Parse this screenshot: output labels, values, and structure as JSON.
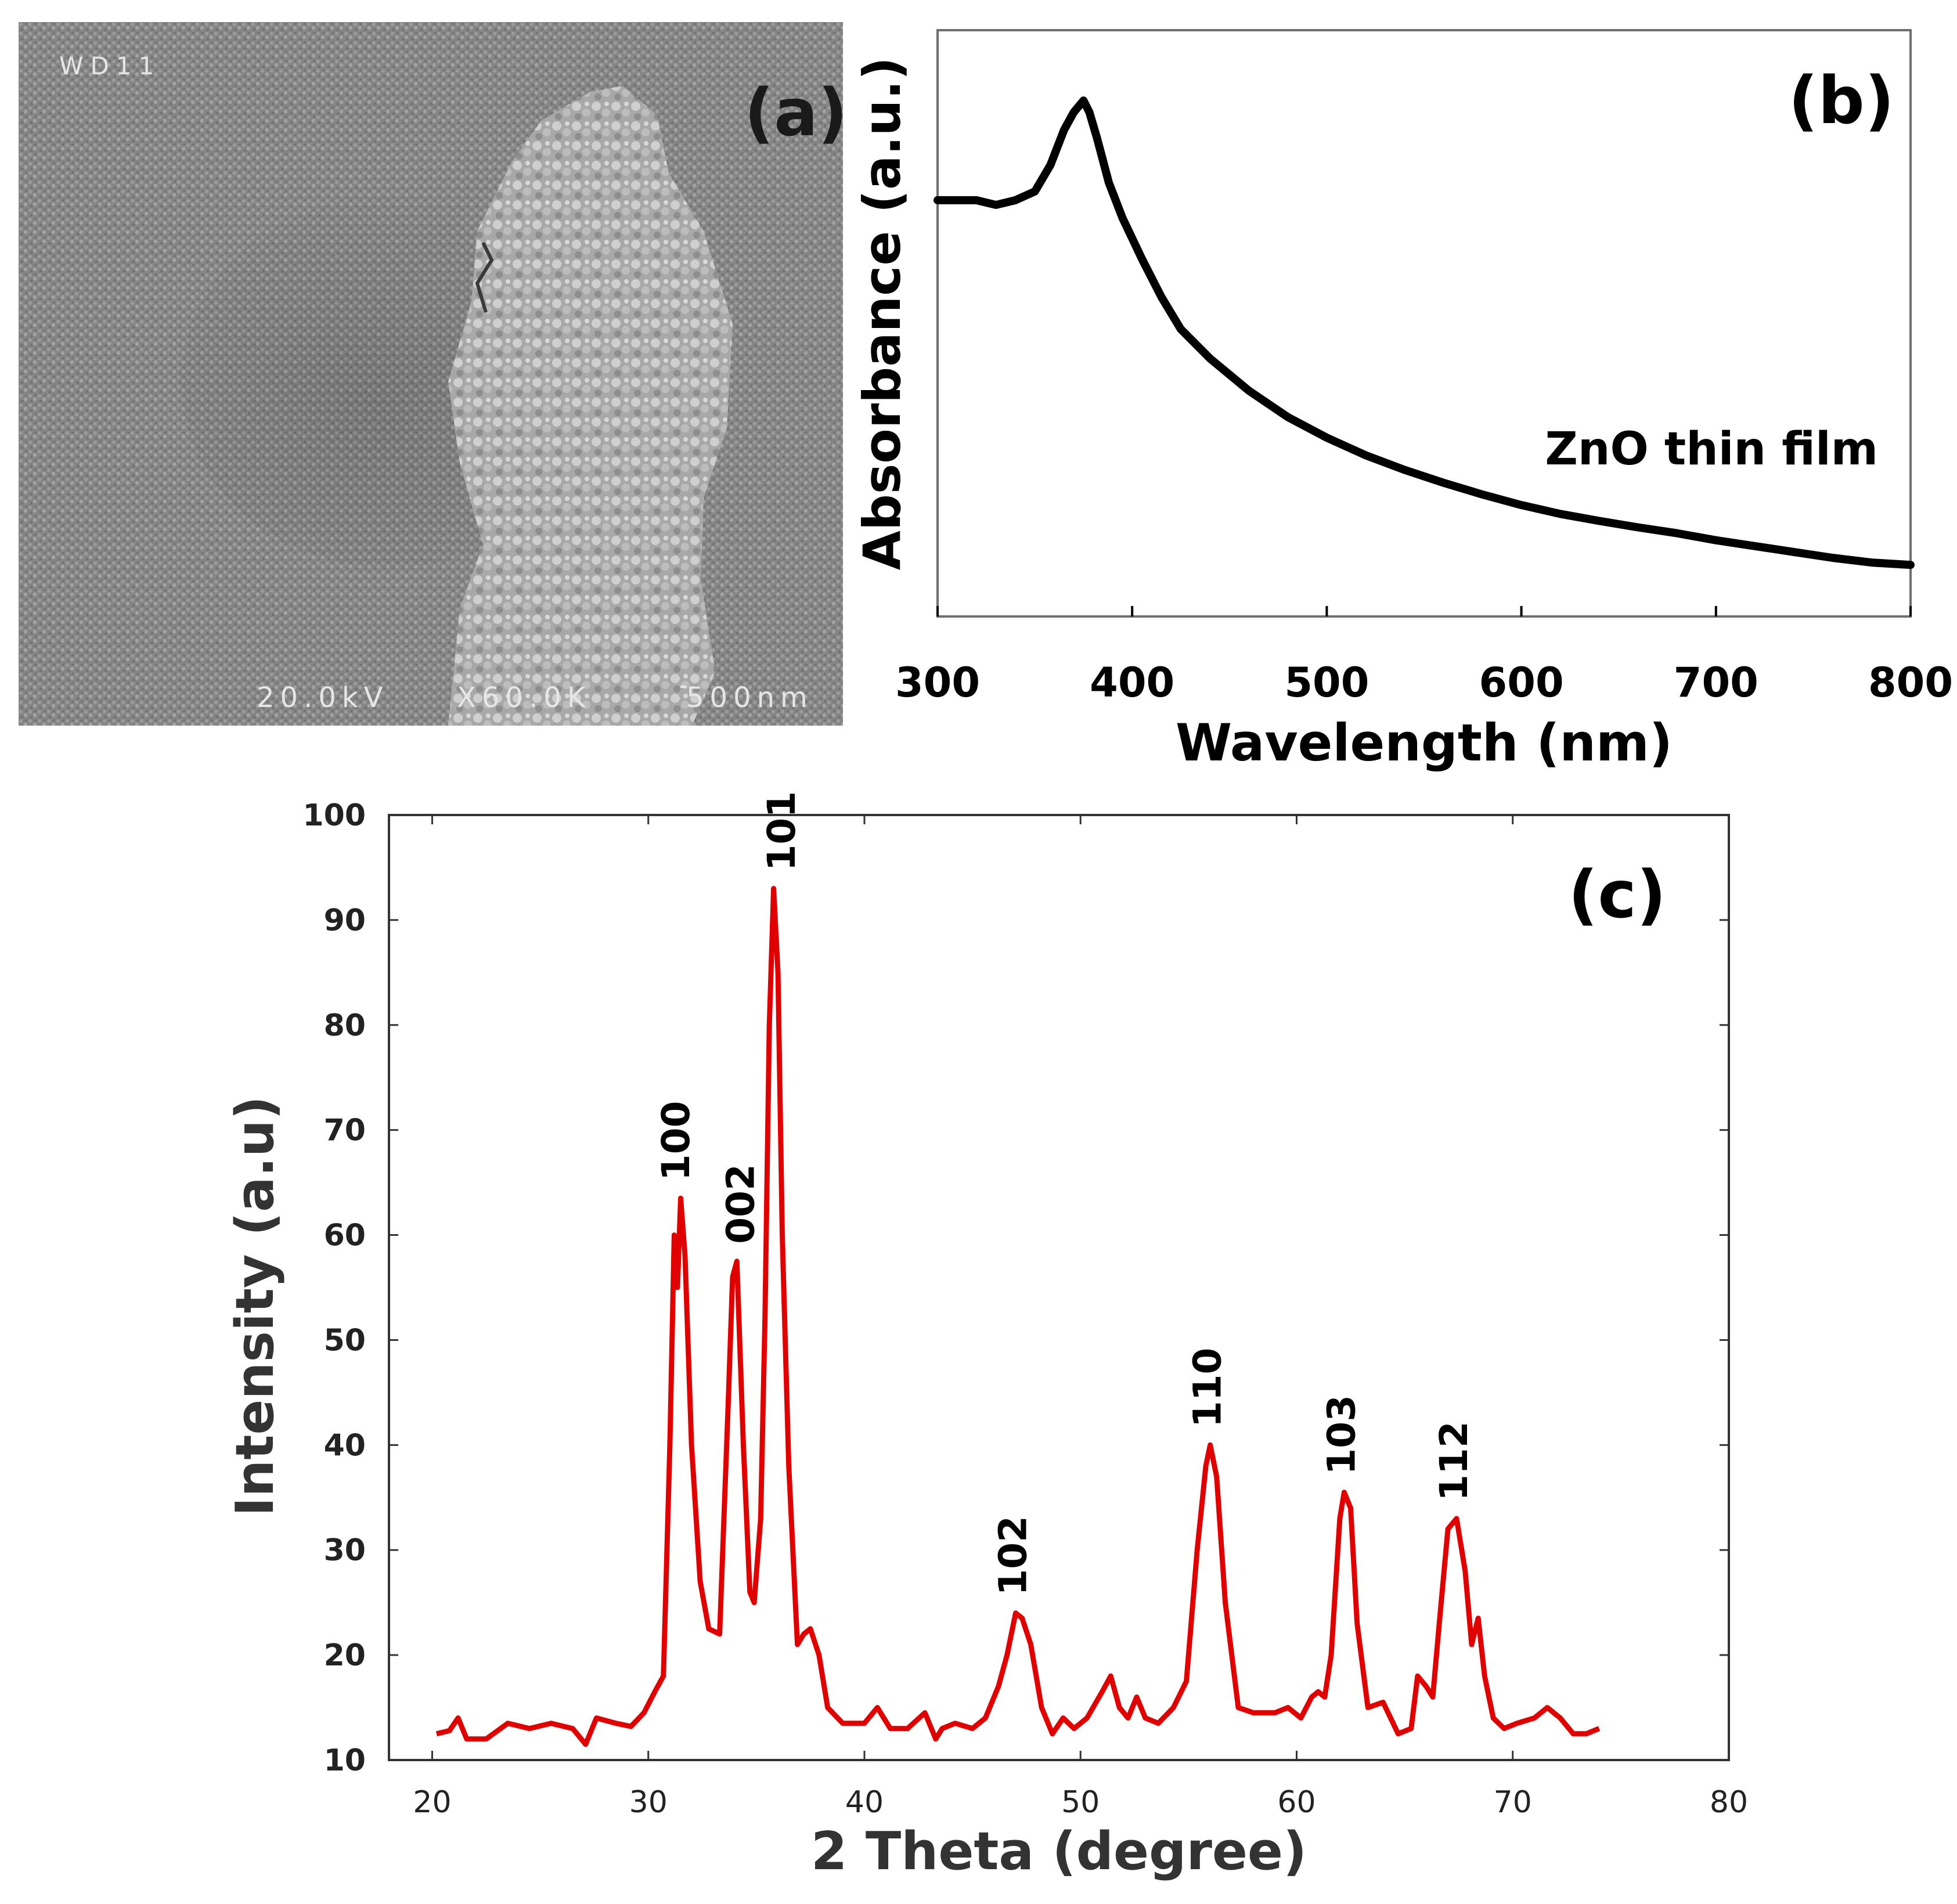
{
  "panels": {
    "a": {
      "label": "(a)",
      "sem_overlay": {
        "corner_label": "WD11",
        "voltage": "20.0kV",
        "magnification": "X60.0K",
        "scale": "500nm"
      }
    }
  },
  "colors": {
    "absorbance_line": "#000000",
    "xrd_line": "#e00000",
    "axis": "#000000",
    "sem_bg": "#8a8a8a"
  },
  "chart_data": [
    {
      "id": "absorbance",
      "type": "line",
      "label": "(b)",
      "title": "",
      "xlabel": "Wavelength (nm)",
      "ylabel": "Absorbance (a.u.)",
      "annotation": "ZnO thin film",
      "xlim": [
        300,
        800
      ],
      "ylim": [
        0,
        1
      ],
      "xticks": [
        300,
        400,
        500,
        600,
        700,
        800
      ],
      "series": [
        {
          "name": "ZnO thin film",
          "x": [
            300,
            320,
            330,
            340,
            350,
            358,
            365,
            370,
            375,
            378,
            382,
            388,
            395,
            405,
            415,
            425,
            440,
            460,
            480,
            500,
            520,
            540,
            560,
            580,
            600,
            620,
            640,
            660,
            680,
            700,
            720,
            740,
            760,
            780,
            800
          ],
          "y": [
            0.71,
            0.71,
            0.702,
            0.71,
            0.725,
            0.77,
            0.83,
            0.86,
            0.88,
            0.86,
            0.815,
            0.74,
            0.68,
            0.61,
            0.545,
            0.49,
            0.44,
            0.385,
            0.34,
            0.305,
            0.275,
            0.25,
            0.228,
            0.208,
            0.19,
            0.175,
            0.163,
            0.152,
            0.142,
            0.13,
            0.12,
            0.11,
            0.1,
            0.092,
            0.088
          ]
        }
      ]
    },
    {
      "id": "xrd",
      "type": "line",
      "label": "(c)",
      "title": "",
      "xlabel": "2 Theta (degree)",
      "ylabel": "Intensity (a.u)",
      "xlim": [
        18,
        80
      ],
      "ylim": [
        10,
        100
      ],
      "xticks": [
        20,
        30,
        40,
        50,
        60,
        70,
        80
      ],
      "yticks": [
        10,
        20,
        30,
        40,
        50,
        60,
        70,
        80,
        90,
        100
      ],
      "peak_labels": [
        {
          "text": "100",
          "x": 31.4,
          "y": 63.5
        },
        {
          "text": "002",
          "x": 34.4,
          "y": 57.5
        },
        {
          "text": "101",
          "x": 36.3,
          "y": 93
        },
        {
          "text": "102",
          "x": 47.0,
          "y": 24
        },
        {
          "text": "110",
          "x": 56.0,
          "y": 40
        },
        {
          "text": "103",
          "x": 62.2,
          "y": 35.5
        },
        {
          "text": "112",
          "x": 67.4,
          "y": 33
        }
      ],
      "series": [
        {
          "name": "ZnO XRD",
          "x": [
            20.2,
            20.8,
            21.2,
            21.6,
            22.5,
            23.5,
            24.5,
            25.5,
            26.5,
            27.1,
            27.6,
            28.5,
            29.2,
            29.8,
            30.3,
            30.7,
            31.0,
            31.2,
            31.35,
            31.5,
            31.7,
            32.0,
            32.4,
            32.8,
            33.3,
            33.7,
            33.9,
            34.1,
            34.4,
            34.7,
            34.9,
            35.2,
            35.4,
            35.6,
            35.8,
            36.0,
            36.2,
            36.5,
            36.9,
            37.2,
            37.5,
            37.9,
            38.3,
            39.0,
            40.0,
            40.6,
            41.2,
            42.0,
            42.8,
            43.3,
            43.6,
            44.2,
            45.0,
            45.6,
            46.2,
            46.6,
            47.0,
            47.3,
            47.7,
            48.2,
            48.7,
            49.2,
            49.7,
            50.3,
            51.0,
            51.4,
            51.8,
            52.2,
            52.6,
            53.0,
            53.6,
            54.3,
            54.9,
            55.4,
            55.8,
            56.0,
            56.3,
            56.7,
            57.3,
            58.0,
            59.0,
            59.6,
            60.2,
            60.7,
            61.0,
            61.3,
            61.6,
            62.0,
            62.2,
            62.5,
            62.8,
            63.3,
            64.0,
            64.7,
            65.3,
            65.6,
            66.0,
            66.3,
            66.6,
            67.0,
            67.4,
            67.8,
            68.1,
            68.4,
            68.7,
            69.1,
            69.6,
            70.2,
            71.0,
            71.6,
            72.2,
            72.8,
            73.4,
            74.0
          ],
          "y": [
            12.5,
            12.8,
            14,
            12,
            12,
            13.5,
            13,
            13.5,
            13,
            11.5,
            14,
            13.5,
            13.2,
            14.5,
            16.5,
            18,
            40,
            60,
            55,
            63.5,
            58,
            40,
            27,
            22.5,
            22,
            44,
            56,
            57.5,
            40,
            26,
            25,
            33,
            52,
            80,
            93,
            85,
            60,
            38,
            21,
            22,
            22.5,
            20,
            15,
            13.5,
            13.5,
            15,
            13,
            13,
            14.5,
            12,
            13,
            13.5,
            13,
            14,
            17,
            20,
            24,
            23.5,
            21,
            15,
            12.5,
            14,
            13,
            14,
            16.5,
            18,
            15,
            14,
            16,
            14,
            13.5,
            15,
            17.5,
            30,
            38,
            40,
            37,
            25,
            15,
            14.5,
            14.5,
            15,
            14,
            16,
            16.5,
            16,
            20,
            33,
            35.5,
            34,
            23,
            15,
            15.5,
            12.5,
            13,
            18,
            17,
            16,
            23,
            32,
            33,
            28,
            21,
            23.5,
            18,
            14,
            13,
            13.5,
            14,
            15,
            14,
            12.5,
            12.5,
            13
          ]
        }
      ]
    }
  ]
}
